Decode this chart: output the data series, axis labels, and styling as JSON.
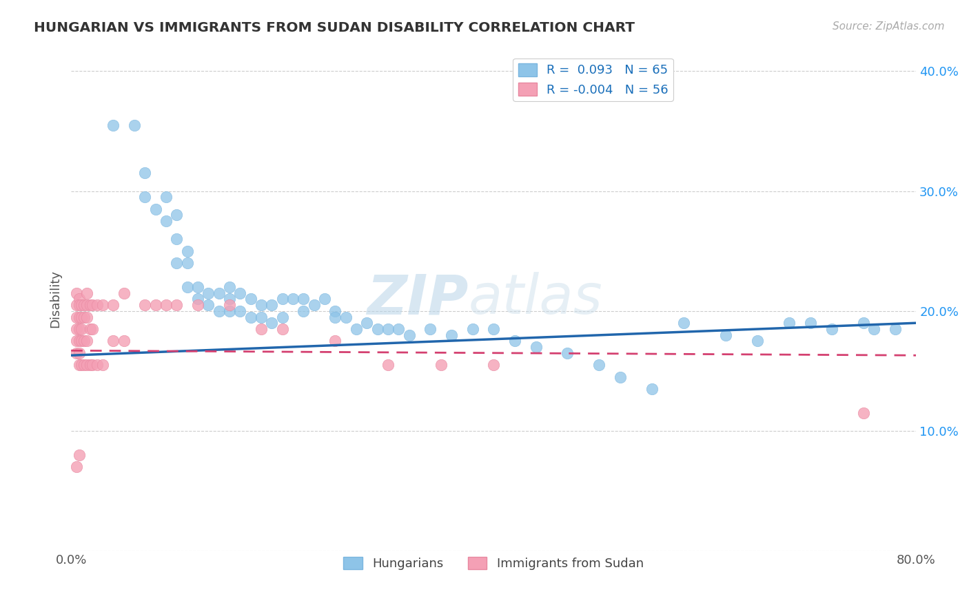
{
  "title": "HUNGARIAN VS IMMIGRANTS FROM SUDAN DISABILITY CORRELATION CHART",
  "source": "Source: ZipAtlas.com",
  "ylabel": "Disability",
  "xlim": [
    0.0,
    0.8
  ],
  "ylim": [
    0.0,
    0.42
  ],
  "yticks": [
    0.0,
    0.1,
    0.2,
    0.3,
    0.4
  ],
  "yticklabels": [
    "",
    "10.0%",
    "20.0%",
    "30.0%",
    "40.0%"
  ],
  "xtick_left_label": "0.0%",
  "xtick_right_label": "80.0%",
  "r_hungarian": 0.093,
  "n_hungarian": 65,
  "r_sudan": -0.004,
  "n_sudan": 56,
  "blue_color": "#8ec4e8",
  "pink_color": "#f4a0b5",
  "blue_line_color": "#2166ac",
  "pink_line_color": "#d44070",
  "legend_blue_label": "Hungarians",
  "legend_pink_label": "Immigrants from Sudan",
  "hungarian_x": [
    0.04,
    0.06,
    0.07,
    0.07,
    0.08,
    0.09,
    0.09,
    0.1,
    0.1,
    0.1,
    0.11,
    0.11,
    0.11,
    0.12,
    0.12,
    0.13,
    0.13,
    0.14,
    0.14,
    0.15,
    0.15,
    0.15,
    0.16,
    0.16,
    0.17,
    0.17,
    0.18,
    0.18,
    0.19,
    0.19,
    0.2,
    0.2,
    0.21,
    0.22,
    0.22,
    0.23,
    0.24,
    0.25,
    0.25,
    0.26,
    0.27,
    0.28,
    0.29,
    0.3,
    0.31,
    0.32,
    0.34,
    0.36,
    0.38,
    0.4,
    0.42,
    0.44,
    0.47,
    0.5,
    0.52,
    0.55,
    0.58,
    0.62,
    0.65,
    0.68,
    0.7,
    0.72,
    0.75,
    0.76,
    0.78
  ],
  "hungarian_y": [
    0.355,
    0.355,
    0.315,
    0.295,
    0.285,
    0.295,
    0.275,
    0.28,
    0.26,
    0.24,
    0.25,
    0.24,
    0.22,
    0.22,
    0.21,
    0.215,
    0.205,
    0.215,
    0.2,
    0.22,
    0.21,
    0.2,
    0.215,
    0.2,
    0.21,
    0.195,
    0.205,
    0.195,
    0.205,
    0.19,
    0.21,
    0.195,
    0.21,
    0.21,
    0.2,
    0.205,
    0.21,
    0.2,
    0.195,
    0.195,
    0.185,
    0.19,
    0.185,
    0.185,
    0.185,
    0.18,
    0.185,
    0.18,
    0.185,
    0.185,
    0.175,
    0.17,
    0.165,
    0.155,
    0.145,
    0.135,
    0.19,
    0.18,
    0.175,
    0.19,
    0.19,
    0.185,
    0.19,
    0.185,
    0.185
  ],
  "sudan_x": [
    0.005,
    0.005,
    0.005,
    0.005,
    0.005,
    0.005,
    0.005,
    0.008,
    0.008,
    0.008,
    0.008,
    0.008,
    0.008,
    0.008,
    0.008,
    0.01,
    0.01,
    0.01,
    0.01,
    0.01,
    0.012,
    0.012,
    0.012,
    0.012,
    0.015,
    0.015,
    0.015,
    0.015,
    0.015,
    0.018,
    0.018,
    0.018,
    0.02,
    0.02,
    0.02,
    0.025,
    0.025,
    0.03,
    0.03,
    0.04,
    0.04,
    0.05,
    0.05,
    0.07,
    0.08,
    0.09,
    0.1,
    0.12,
    0.15,
    0.18,
    0.2,
    0.25,
    0.3,
    0.35,
    0.4,
    0.75
  ],
  "sudan_y": [
    0.215,
    0.205,
    0.195,
    0.185,
    0.175,
    0.165,
    0.07,
    0.21,
    0.205,
    0.195,
    0.185,
    0.175,
    0.165,
    0.155,
    0.08,
    0.205,
    0.195,
    0.185,
    0.175,
    0.155,
    0.205,
    0.195,
    0.175,
    0.155,
    0.215,
    0.205,
    0.195,
    0.175,
    0.155,
    0.205,
    0.185,
    0.155,
    0.205,
    0.185,
    0.155,
    0.205,
    0.155,
    0.205,
    0.155,
    0.205,
    0.175,
    0.215,
    0.175,
    0.205,
    0.205,
    0.205,
    0.205,
    0.205,
    0.205,
    0.185,
    0.185,
    0.175,
    0.155,
    0.155,
    0.155,
    0.115
  ]
}
